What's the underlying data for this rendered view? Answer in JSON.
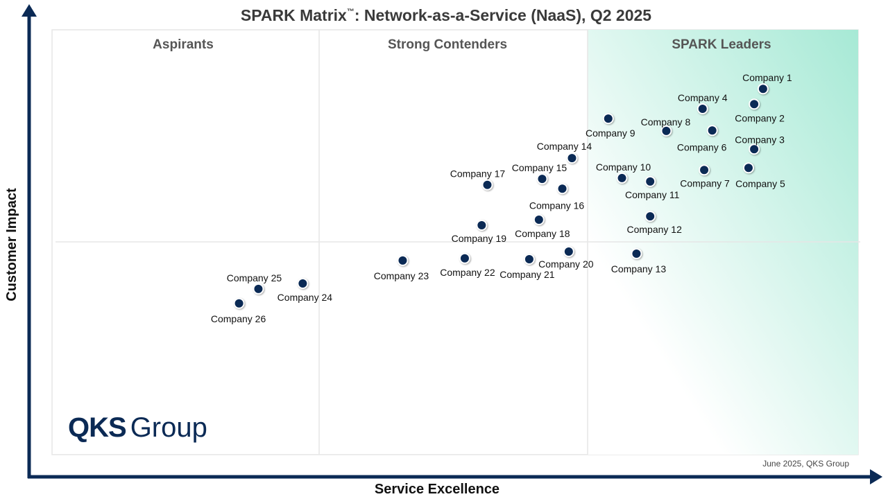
{
  "chart_data": {
    "type": "scatter",
    "title": "SPARK Matrix",
    "title_mark": "™",
    "title_rest": ": Network-as-a-Service (NaaS), Q2 2025",
    "xlabel": "Service Excellence",
    "ylabel": "Customer Impact",
    "xlim": [
      0,
      100
    ],
    "ylim": [
      0,
      100
    ],
    "grid": false,
    "quadrants": [
      "Aspirants",
      "Strong Contenders",
      "SPARK Leaders"
    ],
    "footer": "June 2025, QKS Group",
    "logo": {
      "bold": "QKS",
      "light": "Group"
    },
    "colors": {
      "point": "#0b2a55",
      "axis": "#0b2a55",
      "leaders_gradient": "#a6e9d5",
      "quadrant_text": "#555555"
    },
    "points": [
      {
        "name": "Company 1",
        "x": 88.2,
        "y": 86.1
      },
      {
        "name": "Company 2",
        "x": 87.1,
        "y": 82.5
      },
      {
        "name": "Company 3",
        "x": 87.1,
        "y": 71.9
      },
      {
        "name": "Company 4",
        "x": 80.7,
        "y": 81.4
      },
      {
        "name": "Company 5",
        "x": 86.4,
        "y": 67.5
      },
      {
        "name": "Company 6",
        "x": 81.9,
        "y": 76.3
      },
      {
        "name": "Company 7",
        "x": 80.9,
        "y": 67.0
      },
      {
        "name": "Company 8",
        "x": 76.2,
        "y": 76.2
      },
      {
        "name": "Company 9",
        "x": 69.0,
        "y": 79.1
      },
      {
        "name": "Company 10",
        "x": 70.7,
        "y": 65.1
      },
      {
        "name": "Company 11",
        "x": 74.2,
        "y": 64.3
      },
      {
        "name": "Company 12",
        "x": 74.2,
        "y": 56.1
      },
      {
        "name": "Company 13",
        "x": 72.5,
        "y": 47.3
      },
      {
        "name": "Company 14",
        "x": 64.5,
        "y": 69.8
      },
      {
        "name": "Company 15",
        "x": 60.8,
        "y": 64.9
      },
      {
        "name": "Company 16",
        "x": 63.3,
        "y": 62.6
      },
      {
        "name": "Company 17",
        "x": 54.0,
        "y": 63.5
      },
      {
        "name": "Company 18",
        "x": 60.4,
        "y": 55.3
      },
      {
        "name": "Company 19",
        "x": 53.3,
        "y": 54.0
      },
      {
        "name": "Company 20",
        "x": 64.1,
        "y": 47.8
      },
      {
        "name": "Company 21",
        "x": 59.2,
        "y": 46.0
      },
      {
        "name": "Company 22",
        "x": 51.2,
        "y": 46.2
      },
      {
        "name": "Company 23",
        "x": 43.5,
        "y": 45.7
      },
      {
        "name": "Company 24",
        "x": 31.1,
        "y": 40.3
      },
      {
        "name": "Company 25",
        "x": 25.6,
        "y": 39.0
      },
      {
        "name": "Company 26",
        "x": 23.2,
        "y": 35.6
      }
    ]
  }
}
